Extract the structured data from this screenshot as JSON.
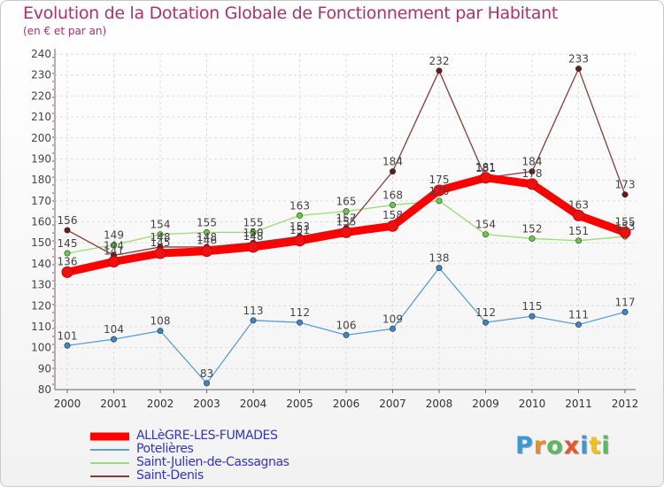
{
  "chart_data": {
    "type": "line",
    "title": "Evolution de la Dotation Globale de Fonctionnement par Habitant",
    "subtitle": "(en € et par an)",
    "xlabel": "",
    "ylabel": "",
    "ylim": [
      80,
      240
    ],
    "y_ticks": [
      80,
      90,
      100,
      110,
      120,
      130,
      140,
      150,
      160,
      170,
      180,
      190,
      200,
      210,
      220,
      230,
      240
    ],
    "categories": [
      "2000",
      "2001",
      "2002",
      "2003",
      "2004",
      "2005",
      "2006",
      "2007",
      "2008",
      "2009",
      "2010",
      "2011",
      "2012"
    ],
    "series": [
      {
        "name": "ALLèGRE-LES-FUMADES",
        "color": "#ff0000",
        "marker_color": "#ee1111",
        "values": [
          136,
          141,
          145,
          146,
          148,
          151,
          155,
          158,
          175,
          181,
          178,
          163,
          155
        ],
        "labels": [
          "136",
          "141",
          "145",
          "146",
          "148",
          "151",
          "155",
          "158",
          "175",
          "181",
          "178",
          "163",
          "155"
        ]
      },
      {
        "name": "Potelières",
        "color": "#5e9fd6",
        "marker_color": "#3a86c8",
        "values": [
          101,
          104,
          108,
          83,
          113,
          112,
          106,
          109,
          138,
          112,
          115,
          111,
          117
        ],
        "labels": [
          "101",
          "104",
          "108",
          "83",
          "113",
          "112",
          "106",
          "109",
          "138",
          "112",
          "115",
          "111",
          "117"
        ]
      },
      {
        "name": "Saint-Julien-de-Cassagnas",
        "color": "#99dd77",
        "marker_color": "#66cc44",
        "values": [
          145,
          149,
          154,
          155,
          155,
          163,
          165,
          168,
          170,
          154,
          152,
          151,
          153
        ],
        "labels": [
          "145",
          "149",
          "154",
          "155",
          "155",
          "163",
          "165",
          "168",
          "170",
          "154",
          "152",
          "151",
          "153"
        ]
      },
      {
        "name": "Saint-Denis",
        "color": "#8b3a3a",
        "marker_color": "#6b1a1a",
        "values": [
          156,
          144,
          148,
          148,
          150,
          153,
          157,
          184,
          232,
          181,
          184,
          233,
          173
        ],
        "labels": [
          "156",
          "144",
          "148",
          "148",
          "150",
          "153",
          "157",
          "184",
          "232",
          "181",
          "184",
          "233",
          "173"
        ]
      }
    ],
    "legend_position": "bottom-left"
  },
  "brand": {
    "letters": [
      "P",
      "r",
      "o",
      "x",
      "i",
      "t",
      "i"
    ],
    "colors": [
      "#3a9ad9",
      "#f08a24",
      "#5cb85c",
      "#e4572e",
      "#3a9ad9",
      "#f0c020",
      "#5cb85c"
    ]
  }
}
